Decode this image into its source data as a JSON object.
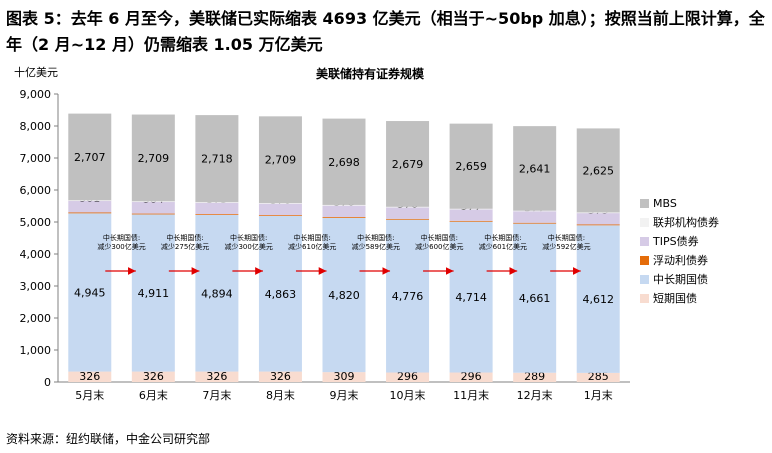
{
  "page": {
    "title": "图表 5：去年 6 月至今，美联储已实际缩表 4693 亿美元（相当于~50bp 加息）；按照当前上限计算，全年（2 月~12 月）仍需缩表 1.05 万亿美元",
    "source": "资料来源：纽约联储，中金公司研究部"
  },
  "chart_data": {
    "type": "bar",
    "stacked": true,
    "title": "美联储持有证券规模",
    "ylabel": "十亿美元",
    "xlabel": "",
    "ylim": [
      0,
      9000
    ],
    "yticks": [
      0,
      1000,
      2000,
      3000,
      4000,
      5000,
      6000,
      7000,
      8000,
      9000
    ],
    "categories": [
      "5月末",
      "6月末",
      "7月末",
      "8月末",
      "9月末",
      "10月末",
      "11月末",
      "12月末",
      "1月末"
    ],
    "series": [
      {
        "name": "短期国债",
        "color": "#f8dcd0",
        "values": [
          326,
          326,
          326,
          326,
          309,
          296,
          296,
          289,
          285
        ],
        "labels": true
      },
      {
        "name": "中长期国债",
        "color": "#c6d9f1",
        "values": [
          4945,
          4911,
          4894,
          4863,
          4820,
          4776,
          4714,
          4661,
          4612
        ],
        "labels": true
      },
      {
        "name": "浮动利债券",
        "color": "#e46c0a",
        "values": [
          26,
          26,
          26,
          26,
          26,
          26,
          26,
          26,
          26
        ],
        "labels": false
      },
      {
        "name": "TIPS债券",
        "color": "#d6cbe6",
        "values": [
          381,
          384,
          375,
          376,
          376,
          376,
          377,
          377,
          375
        ],
        "labels": true
      },
      {
        "name": "联邦机构债券",
        "color": "#f2f2f2",
        "values": [
          2,
          2,
          2,
          2,
          2,
          2,
          2,
          2,
          2
        ],
        "labels": false
      },
      {
        "name": "MBS",
        "color": "#c0c0c0",
        "values": [
          2707,
          2709,
          2718,
          2709,
          2698,
          2679,
          2659,
          2641,
          2625
        ],
        "labels": true
      }
    ],
    "legend_position": "right",
    "legend_order": [
      "MBS",
      "联邦机构债券",
      "TIPS债券",
      "浮动利债券",
      "中长期国债",
      "短期国债"
    ],
    "annotations": [
      {
        "between": [
          0,
          1
        ],
        "line1": "中长期国债:",
        "line2": "减少300亿美元"
      },
      {
        "between": [
          1,
          2
        ],
        "line1": "中长期国债:",
        "line2": "减少275亿美元"
      },
      {
        "between": [
          2,
          3
        ],
        "line1": "中长期国债:",
        "line2": "减少300亿美元"
      },
      {
        "between": [
          3,
          4
        ],
        "line1": "中长期国债:",
        "line2": "减少610亿美元"
      },
      {
        "between": [
          4,
          5
        ],
        "line1": "中长期国债:",
        "line2": "减少589亿美元"
      },
      {
        "between": [
          5,
          6
        ],
        "line1": "中长期国债:",
        "line2": "减少600亿美元"
      },
      {
        "between": [
          6,
          7
        ],
        "line1": "中长期国债:",
        "line2": "减少601亿美元"
      },
      {
        "between": [
          7,
          8
        ],
        "line1": "中长期国债:",
        "line2": "减少592亿美元"
      }
    ],
    "arrow_color": "#e00000",
    "grid": false
  }
}
